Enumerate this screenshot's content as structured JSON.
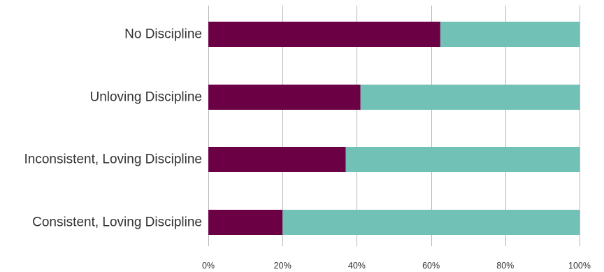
{
  "chart_data": {
    "type": "bar",
    "orientation": "horizontal",
    "stacked": true,
    "normalized": true,
    "categories": [
      "No Discipline",
      "Unloving Discipline",
      "Inconsistent, Loving Discipline",
      "Consistent, Loving Discipline"
    ],
    "series": [
      {
        "color": "#6b0045",
        "values": [
          62.5,
          41,
          37,
          20
        ]
      },
      {
        "color": "#72c1b6",
        "values": [
          37.5,
          59,
          63,
          80
        ]
      }
    ],
    "xlim": [
      0,
      100
    ],
    "x_ticks": [
      "0%",
      "20%",
      "40%",
      "60%",
      "80%",
      "100%"
    ],
    "x_tick_values": [
      0,
      20,
      40,
      60,
      80,
      100
    ],
    "grid": "vertical",
    "legend": "none"
  }
}
